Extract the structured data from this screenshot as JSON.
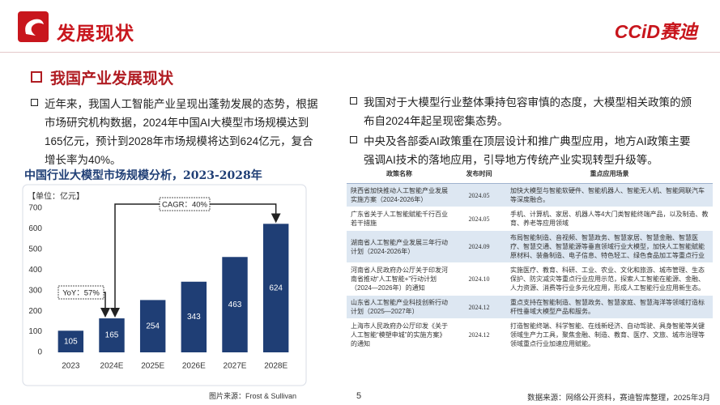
{
  "header": {
    "title": "发展现状",
    "logo": "CCiD赛迪"
  },
  "section_title": "我国产业发展现状",
  "left_bullets": [
    "近年来，我国人工智能产业呈现出蓬勃发展的态势，根据市场研究机构数据，2024年中国AI大模型市场规模达到165亿元，预计到2028年市场规模将达到624亿元，复合增长率为40%。"
  ],
  "chart_data": {
    "type": "bar",
    "title": "中国行业大模型市场规模分析，2023-2028年",
    "unit": "【单位：亿元】",
    "categories": [
      "2023",
      "2024E",
      "2025E",
      "2026E",
      "2027E",
      "2028E"
    ],
    "values": [
      105,
      165,
      254,
      343,
      463,
      624
    ],
    "color": "#1f3e75",
    "ylim": [
      0,
      700
    ],
    "yticks": [
      0,
      100,
      200,
      300,
      400,
      500,
      600,
      700
    ],
    "grid": false,
    "annotations": [
      "YoY：57%",
      "CAGR：40%"
    ]
  },
  "chart_source": "图片来源：Frost & Sullivan",
  "right_bullets": [
    "我国对于大模型行业整体秉持包容审慎的态度，大模型相关政策的颁布自2024年起呈现密集态势。",
    "中央及各部委AI政策重在顶层设计和推广典型应用，地方AI政策主要强调AI技术的落地应用，引导地方传统产业实现转型升级等。"
  ],
  "table": {
    "header": [
      "政策名称",
      "发布时间",
      "重点应用场景"
    ],
    "rows": [
      [
        "陕西省加快推动人工智能产业发展实施方案（2024-2026年）",
        "2024.05",
        "加快大模型与智能软硬件、智能机器人、智能无人机、智能网联汽车等深度融合。"
      ],
      [
        "广东省关于人工智能赋能千行百业若干措施",
        "2024.05",
        "手机、计算机、家居、机器人等4大门类智能终端产品，以及制造、教育、养老等应用领域"
      ],
      [
        "湖南省人工智能产业发展三年行动计划（2024-2026年）",
        "2024.09",
        "布局智能制造、音视频、智慧政务、智慧家居、智慧金融、智慧医疗、智慧交通、智慧能源等垂直领域行业大模型，加快人工智能赋能原材料、装备制造、电子信息、特色轻工、绿色食品加工等重点行业"
      ],
      [
        "河南省人民政府办公厅关于印发河南省推动“人工智能+”行动计划（2024—2026年）的通知",
        "2024.10",
        "实施医疗、教育、科研、工业、农业、文化和旅游、城市管理、生态保护、防灾减灾等重点行业应用示范，探索人工智能在能源、金融、人力资源、消费等行业多元化应用，形成人工智能行业应用新生态。"
      ],
      [
        "山东省人工智能产业科技创新行动计划（2025—2027年）",
        "2024.12",
        "重点支持在智能制造、智慧政务、智慧家庭、智慧海洋等领域打造标杆性垂域大模型产品和服务。"
      ],
      [
        "上海市人民政府办公厅印发《关于人工智能“模塑申城”的实施方案》的通知",
        "2024.12",
        "打造智能终端、科学智能、在线新经济、自动驾驶、具身智能等关键领域生产力工具，聚焦金融、制造、教育、医疗、文旅、城市治理等领域重点行业加速应用赋能。"
      ]
    ]
  },
  "page_number": "5",
  "table_source": "数据来源：网络公开资料，赛迪智库整理，2025年3月"
}
